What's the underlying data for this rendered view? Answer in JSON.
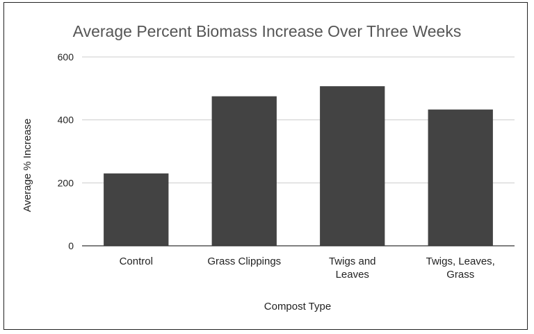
{
  "chart_data": {
    "type": "bar",
    "title": "Average Percent Biomass Increase Over Three Weeks",
    "xlabel": "Compost Type",
    "ylabel": "Average % Increase",
    "categories": [
      [
        "Control"
      ],
      [
        "Grass Clippings"
      ],
      [
        "Twigs and",
        "Leaves"
      ],
      [
        "Twigs, Leaves,",
        "Grass"
      ]
    ],
    "values": [
      230,
      475,
      507,
      433
    ],
    "ylim": [
      0,
      600
    ],
    "yticks": [
      0,
      200,
      400,
      600
    ],
    "grid": true,
    "bar_color": "#434343",
    "grid_color": "#cccccc"
  }
}
